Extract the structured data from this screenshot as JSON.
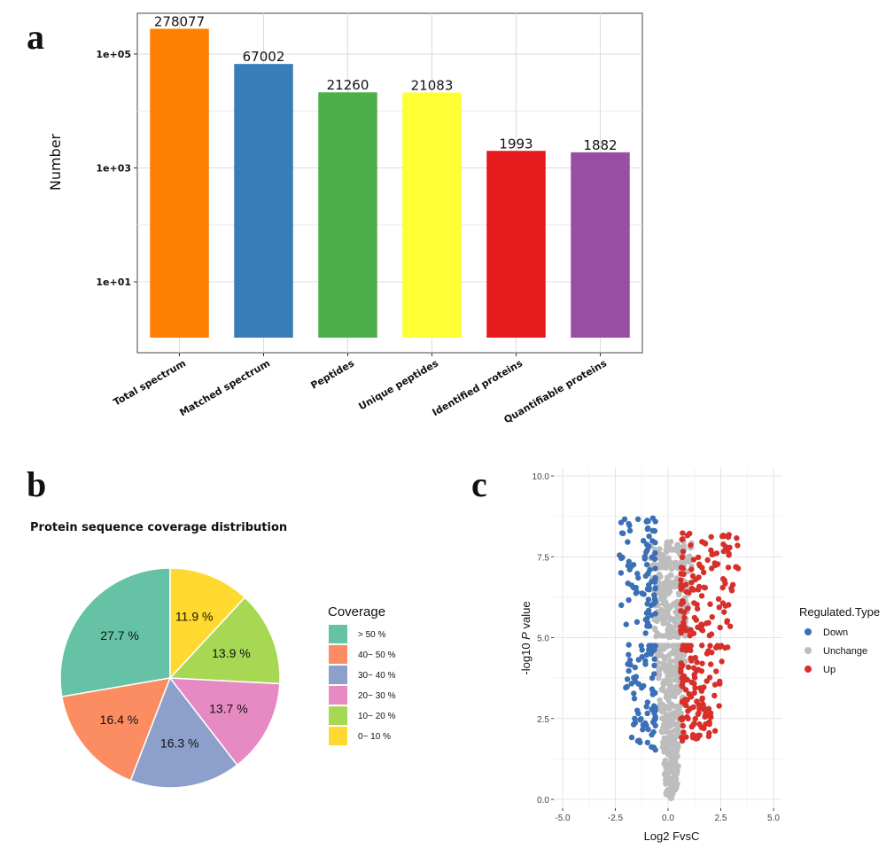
{
  "chart_data": [
    {
      "panel": "a",
      "type": "bar",
      "title": "",
      "xlabel": "",
      "ylabel": "Number",
      "yscale": "log10",
      "ylim": [
        0.8,
        600000
      ],
      "yticks": [
        10,
        1000,
        100000
      ],
      "ytick_labels": [
        "1e+01",
        "1e+03",
        "1e+05"
      ],
      "grid": true,
      "categories": [
        "Total spectrum",
        "Matched spectrum",
        "Peptides",
        "Unique peptides",
        "Identified proteins",
        "Quantifiable proteins"
      ],
      "values": [
        278077,
        67002,
        21260,
        21083,
        1993,
        1882
      ],
      "value_labels": [
        "278077",
        "67002",
        "21260",
        "21083",
        "1993",
        "1882"
      ],
      "colors": [
        "#ff7f00",
        "#377eb8",
        "#4daf4a",
        "#ffff33",
        "#e41a1c",
        "#984ea3"
      ]
    },
    {
      "panel": "b",
      "type": "pie",
      "title": "Protein sequence coverage distribution",
      "legend_title": "Coverage",
      "legend_position": "right",
      "slices": [
        {
          "label": "> 50 %",
          "value": 27.7,
          "value_label": "27.7 %",
          "color": "#66c2a5"
        },
        {
          "label": "40~ 50 %",
          "value": 16.4,
          "value_label": "16.4 %",
          "color": "#fc8d62"
        },
        {
          "label": "30~ 40 %",
          "value": 16.3,
          "value_label": "16.3 %",
          "color": "#8da0cb"
        },
        {
          "label": "20~ 30 %",
          "value": 13.7,
          "value_label": "13.7 %",
          "color": "#e78ac3"
        },
        {
          "label": "10~ 20 %",
          "value": 13.9,
          "value_label": "13.9 %",
          "color": "#a6d854"
        },
        {
          "label": " 0~ 10 %",
          "value": 11.9,
          "value_label": "11.9 %",
          "color": "#ffd92f"
        }
      ]
    },
    {
      "panel": "c",
      "type": "scatter",
      "title": "",
      "xlabel": "Log2 FvsC",
      "ylabel_prefix": "-log10 ",
      "ylabel_italic": "P",
      "ylabel_suffix": " value",
      "xlim": [
        -5.0,
        5.0
      ],
      "ylim": [
        0.0,
        10.0
      ],
      "xticks": [
        -5.0,
        -2.5,
        0.0,
        2.5,
        5.0
      ],
      "xtick_labels": [
        "-5.0",
        "-2.5",
        "0.0",
        "2.5",
        "5.0"
      ],
      "yticks": [
        0.0,
        2.5,
        5.0,
        7.5,
        10.0
      ],
      "ytick_labels": [
        "0.0",
        "2.5",
        "5.0",
        "7.5",
        "10.0"
      ],
      "grid": true,
      "legend_title": "Regulated.Type",
      "legend_position": "right",
      "series": [
        {
          "name": "Down",
          "color": "#3b6fb6",
          "x_range": [
            -2.3,
            -0.6
          ],
          "y_range": [
            1.5,
            8.8
          ],
          "count": 170
        },
        {
          "name": "Unchange",
          "color": "#bdbdbd",
          "x_range": [
            -0.9,
            1.3
          ],
          "y_range": [
            0.0,
            8.0
          ],
          "count": 620
        },
        {
          "name": "Up",
          "color": "#d7302a",
          "x_range": [
            0.6,
            3.7
          ],
          "y_range": [
            1.8,
            8.4
          ],
          "count": 240
        }
      ],
      "gap_band": [
        4.8,
        5.0
      ]
    }
  ],
  "panel_letters": {
    "a": "a",
    "b": "b",
    "c": "c"
  }
}
